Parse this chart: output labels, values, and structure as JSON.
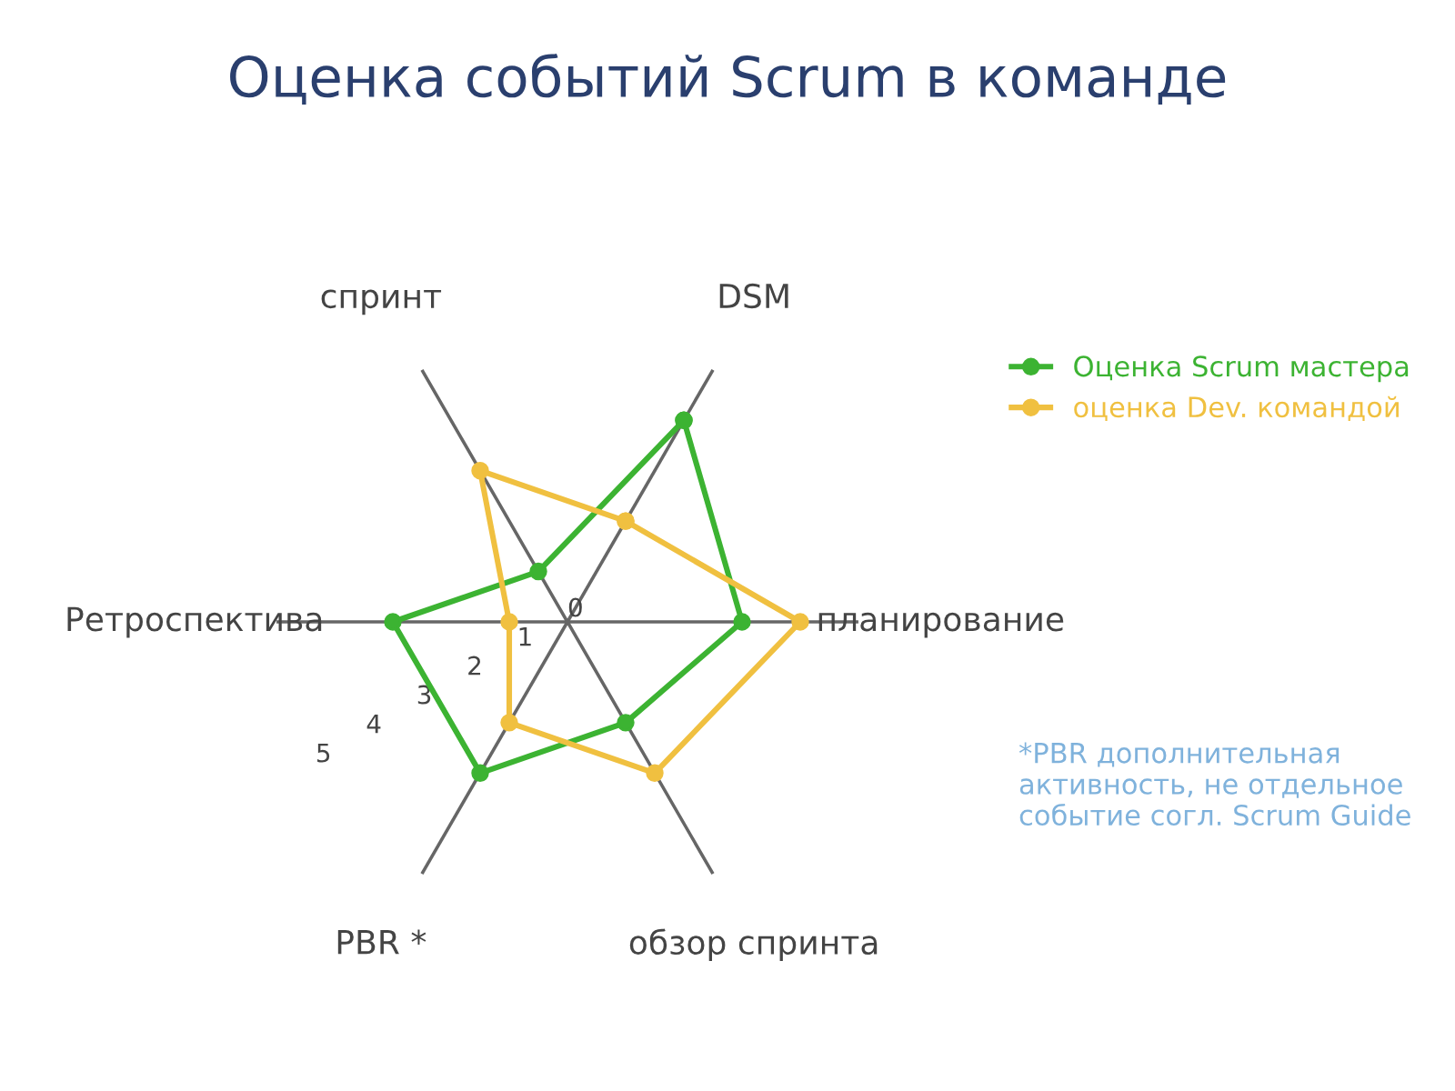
{
  "chart_data": {
    "type": "radar",
    "title": "Оценка событий Scrum в команде",
    "categories": [
      "DSM",
      "планирование",
      "обзор спринта",
      "PBR *",
      "Ретроспектива",
      "спринт"
    ],
    "series": [
      {
        "name": "Оценка Scrum мастера",
        "color": "#3cb332",
        "values": [
          4,
          3,
          2,
          3,
          3,
          1
        ]
      },
      {
        "name": "оценка Dev. командой",
        "color": "#f0c040",
        "values": [
          2,
          4,
          3,
          2,
          1,
          3
        ]
      }
    ],
    "ylim": [
      0,
      5
    ],
    "yticks": [
      0,
      1,
      2,
      3,
      4,
      5
    ],
    "grid": "x",
    "legend": "right",
    "marker": "circle",
    "annotations": [
      "*PBR дополнительная активность, не отдельное событие согл. Scrum Guide"
    ]
  }
}
